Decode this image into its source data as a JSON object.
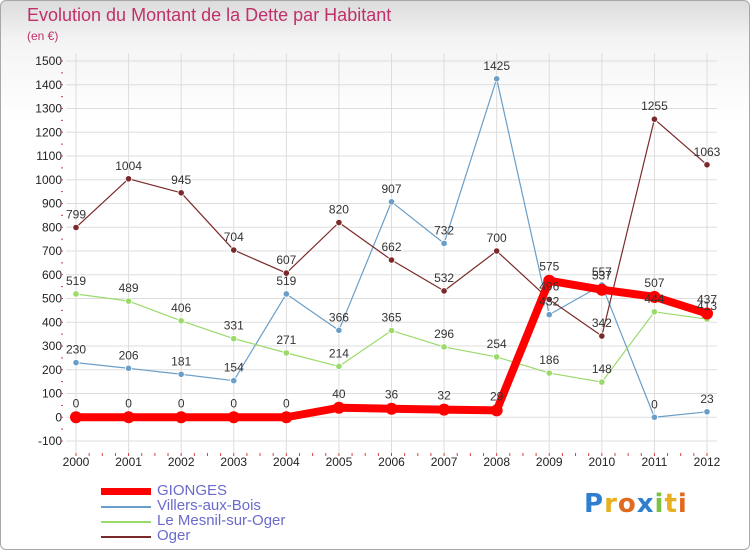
{
  "title": "Evolution du Montant de la Dette par Habitant",
  "unit_label": "(en €)",
  "logo_text": "Proxiti",
  "chart_data": {
    "type": "line",
    "x": [
      "2000",
      "2001",
      "2002",
      "2003",
      "2004",
      "2005",
      "2006",
      "2007",
      "2008",
      "2009",
      "2010",
      "2011",
      "2012"
    ],
    "y_ticks": [
      -100,
      0,
      100,
      200,
      300,
      400,
      500,
      600,
      700,
      800,
      900,
      1000,
      1100,
      1200,
      1300,
      1400,
      1500
    ],
    "ylim": [
      -100,
      1500
    ],
    "series": [
      {
        "name": "GIONGES",
        "color": "#ff0000",
        "values": [
          0,
          0,
          0,
          0,
          0,
          40,
          36,
          32,
          29,
          575,
          537,
          507,
          437
        ],
        "labels": [
          "0",
          "0",
          "0",
          "0",
          "0",
          "40",
          "36",
          "32",
          "29",
          "575",
          "537",
          "507",
          "437"
        ]
      },
      {
        "name": "Villers-aux-Bois",
        "color": "#6a9ec8",
        "values": [
          230,
          206,
          181,
          154,
          519,
          366,
          907,
          732,
          1425,
          432,
          557,
          0,
          23
        ],
        "labels": [
          "230",
          "206",
          "181",
          "154",
          "519",
          "366",
          "907",
          "732",
          "1425",
          "432",
          "557",
          "0",
          "23"
        ]
      },
      {
        "name": "Le Mesnil-sur-Oger",
        "color": "#9ada6a",
        "values": [
          519,
          489,
          406,
          331,
          271,
          214,
          365,
          296,
          254,
          186,
          148,
          444,
          413
        ],
        "labels": [
          "519",
          "489",
          "406",
          "331",
          "271",
          "214",
          "365",
          "296",
          "254",
          "186",
          "148",
          "444",
          "413"
        ]
      },
      {
        "name": "Oger",
        "color": "#7a2a2a",
        "values": [
          799,
          1004,
          945,
          704,
          607,
          820,
          662,
          532,
          700,
          496,
          342,
          1255,
          1063
        ],
        "labels": [
          "799",
          "1004",
          "945",
          "704",
          "607",
          "820",
          "662",
          "532",
          "700",
          "496",
          "342",
          "1255",
          "1063"
        ]
      }
    ]
  },
  "legend": [
    {
      "label": "GIONGES",
      "color": "#ff0000"
    },
    {
      "label": "Villers-aux-Bois",
      "color": "#6a9ec8"
    },
    {
      "label": "Le Mesnil-sur-Oger",
      "color": "#9ada6a"
    },
    {
      "label": "Oger",
      "color": "#7a2a2a"
    }
  ]
}
